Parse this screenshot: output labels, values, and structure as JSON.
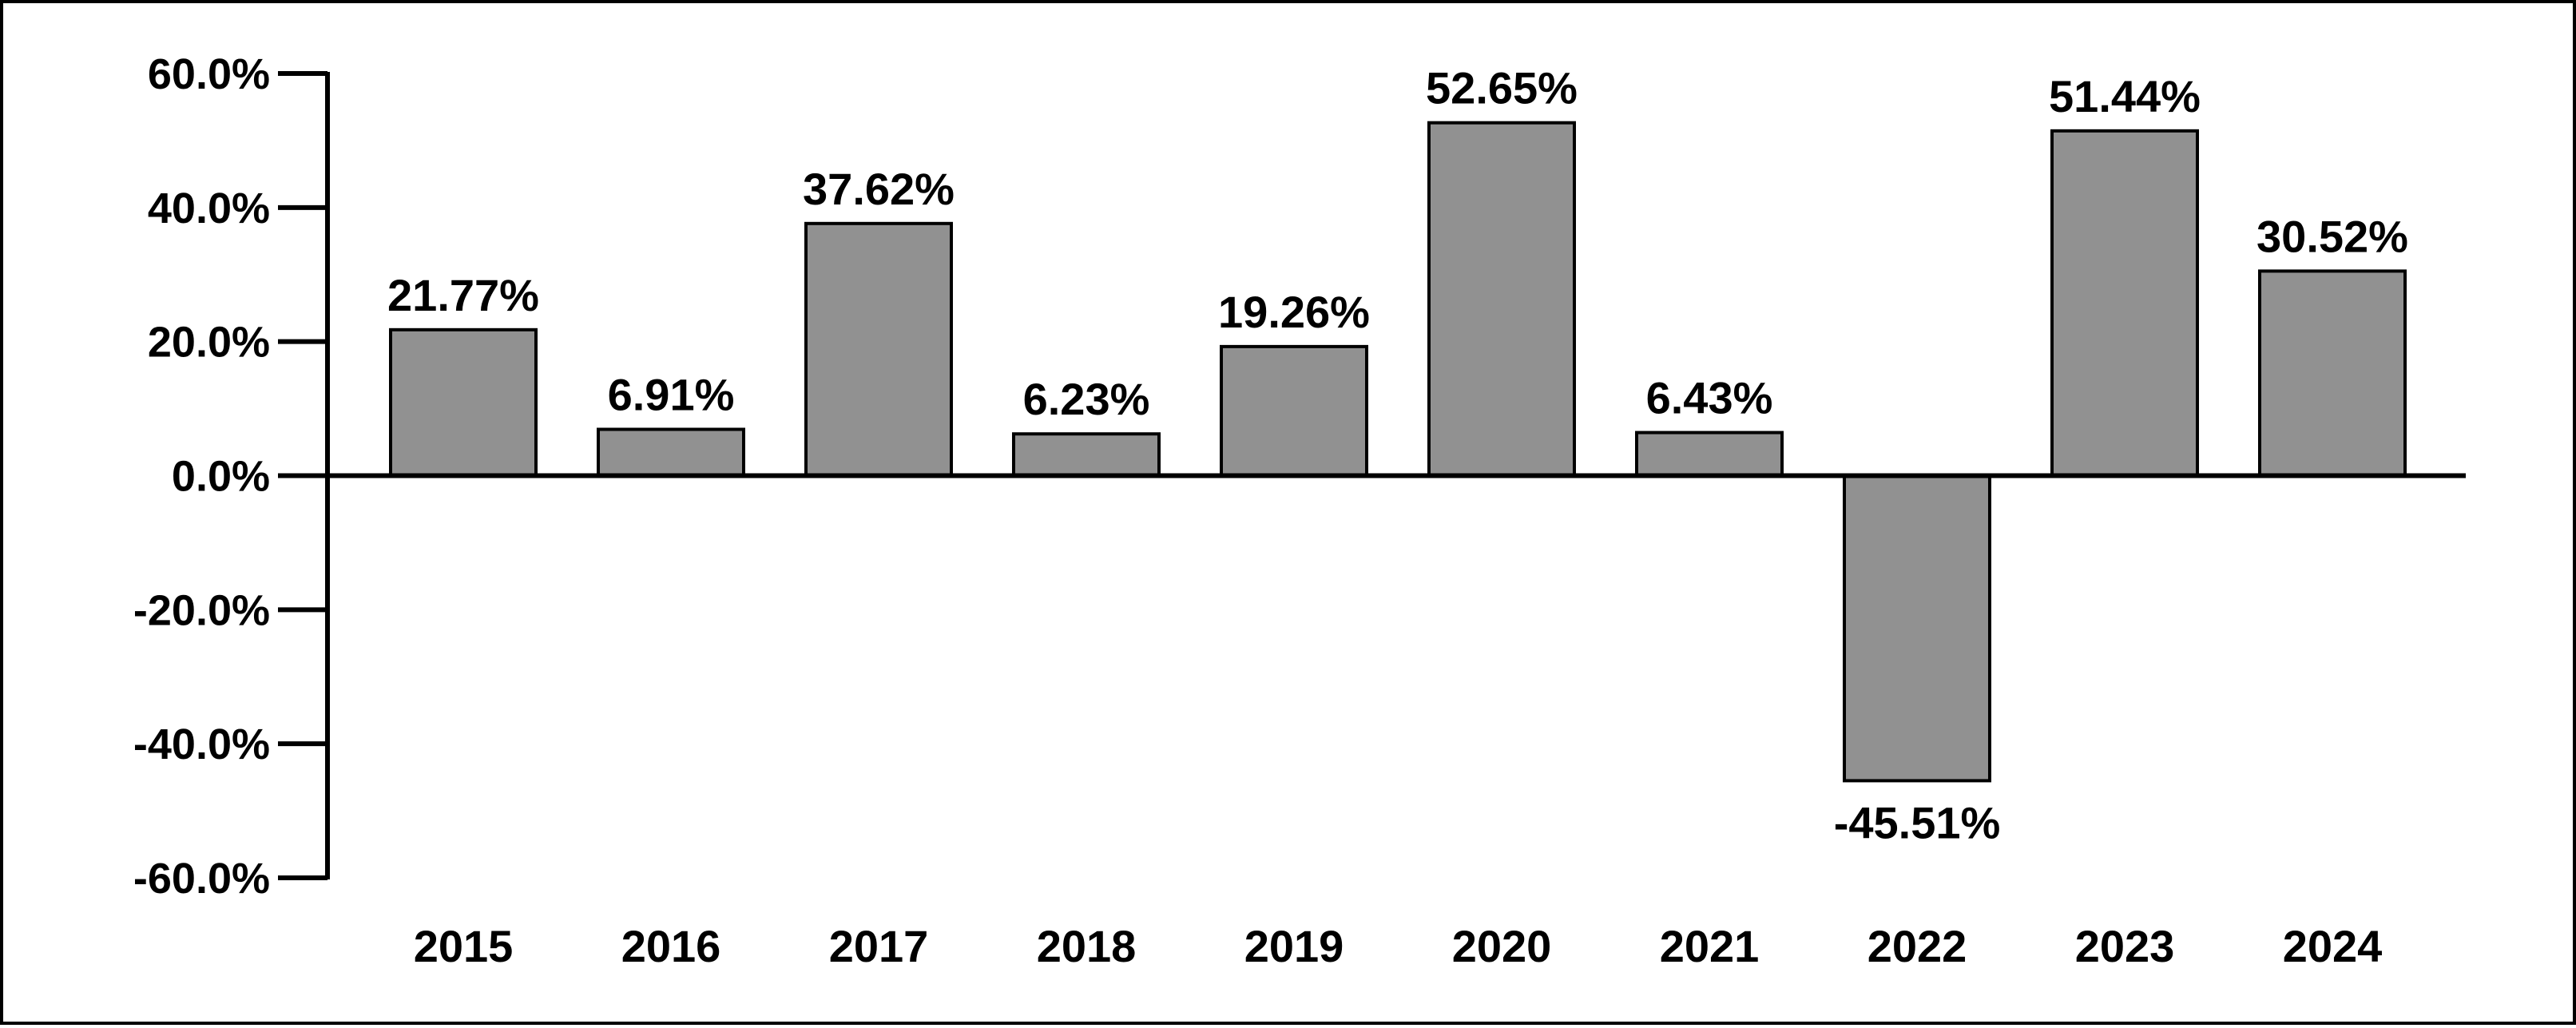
{
  "chart_data": {
    "type": "bar",
    "categories": [
      "2015",
      "2016",
      "2017",
      "2018",
      "2019",
      "2020",
      "2021",
      "2022",
      "2023",
      "2024"
    ],
    "values": [
      21.77,
      6.91,
      37.62,
      6.23,
      19.26,
      52.65,
      6.43,
      -45.51,
      51.44,
      30.52
    ],
    "data_labels": [
      "21.77%",
      "6.91%",
      "37.62%",
      "6.23%",
      "19.26%",
      "52.65%",
      "6.43%",
      "-45.51%",
      "51.44%",
      "30.52%"
    ],
    "y_ticks": [
      60,
      40,
      20,
      0,
      -20,
      -40,
      -60
    ],
    "y_tick_labels": [
      "60.0%",
      "40.0%",
      "20.0%",
      "0.0%",
      "-20.0%",
      "-40.0%",
      "-60.0%"
    ],
    "ylim": [
      -60,
      60
    ],
    "grid": false,
    "legend": "none",
    "colors": {
      "bar_fill": "#919191",
      "bar_stroke": "#000000",
      "axis": "#000000"
    }
  }
}
